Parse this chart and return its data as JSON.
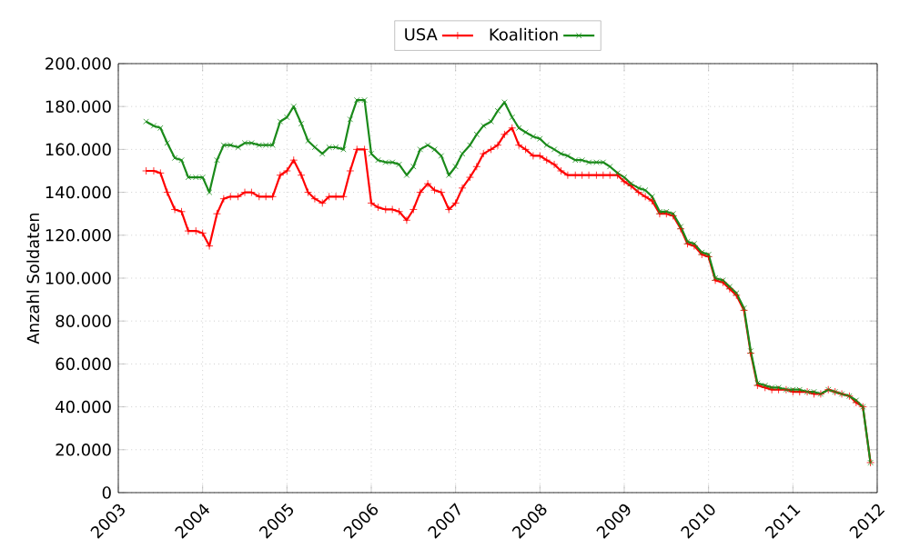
{
  "chart_data": {
    "type": "line",
    "ylabel": "Anzahl Soldaten",
    "xlim": [
      2003,
      2012
    ],
    "xticks": [
      2003,
      2004,
      2005,
      2006,
      2007,
      2008,
      2009,
      2010,
      2011,
      2012
    ],
    "ylim": [
      0,
      200000
    ],
    "yticks": [
      {
        "value": 0,
        "label": "0"
      },
      {
        "value": 20000,
        "label": "20.000"
      },
      {
        "value": 40000,
        "label": "40.000"
      },
      {
        "value": 60000,
        "label": "60.000"
      },
      {
        "value": 80000,
        "label": "80.000"
      },
      {
        "value": 100000,
        "label": "100.000"
      },
      {
        "value": 120000,
        "label": "120.000"
      },
      {
        "value": 140000,
        "label": "140.000"
      },
      {
        "value": 160000,
        "label": "160.000"
      },
      {
        "value": 180000,
        "label": "180.000"
      },
      {
        "value": 200000,
        "label": "200.000"
      }
    ],
    "grid": true,
    "legend": "top",
    "line_style": "solid",
    "series": [
      {
        "name": "USA",
        "color": "#ff0000",
        "marker": "plus",
        "x": [
          2003.33,
          2003.42,
          2003.5,
          2003.58,
          2003.67,
          2003.75,
          2003.83,
          2003.92,
          2004.0,
          2004.08,
          2004.17,
          2004.25,
          2004.33,
          2004.42,
          2004.5,
          2004.58,
          2004.67,
          2004.75,
          2004.83,
          2004.92,
          2005.0,
          2005.08,
          2005.17,
          2005.25,
          2005.33,
          2005.42,
          2005.5,
          2005.58,
          2005.67,
          2005.75,
          2005.83,
          2005.92,
          2006.0,
          2006.08,
          2006.17,
          2006.25,
          2006.33,
          2006.42,
          2006.5,
          2006.58,
          2006.67,
          2006.75,
          2006.83,
          2006.92,
          2007.0,
          2007.08,
          2007.17,
          2007.25,
          2007.33,
          2007.42,
          2007.5,
          2007.58,
          2007.67,
          2007.75,
          2007.83,
          2007.92,
          2008.0,
          2008.08,
          2008.17,
          2008.25,
          2008.33,
          2008.42,
          2008.5,
          2008.58,
          2008.67,
          2008.75,
          2008.83,
          2008.92,
          2009.0,
          2009.08,
          2009.17,
          2009.25,
          2009.33,
          2009.42,
          2009.5,
          2009.58,
          2009.67,
          2009.75,
          2009.83,
          2009.92,
          2010.0,
          2010.08,
          2010.17,
          2010.25,
          2010.33,
          2010.42,
          2010.5,
          2010.58,
          2010.67,
          2010.75,
          2010.83,
          2010.92,
          2011.0,
          2011.08,
          2011.17,
          2011.25,
          2011.33,
          2011.42,
          2011.5,
          2011.58,
          2011.67,
          2011.75,
          2011.83,
          2011.92
        ],
        "values": [
          150000,
          150000,
          149000,
          140000,
          132000,
          131000,
          122000,
          122000,
          121000,
          115000,
          130000,
          137000,
          138000,
          138000,
          140000,
          140000,
          138000,
          138000,
          138000,
          148000,
          150000,
          155000,
          148000,
          140000,
          137000,
          135000,
          138000,
          138000,
          138000,
          150000,
          160000,
          160000,
          135000,
          133000,
          132000,
          132000,
          131000,
          127000,
          132000,
          140000,
          144000,
          141000,
          140000,
          132000,
          135000,
          142000,
          147000,
          152000,
          158000,
          160000,
          162000,
          167000,
          170000,
          162000,
          160000,
          157000,
          157000,
          155000,
          153000,
          150000,
          148000,
          148000,
          148000,
          148000,
          148000,
          148000,
          148000,
          148000,
          145000,
          143000,
          140000,
          138000,
          136000,
          130000,
          130000,
          129000,
          123000,
          116000,
          115000,
          111000,
          110000,
          99000,
          98000,
          95000,
          92000,
          85000,
          65000,
          50000,
          49000,
          48000,
          48000,
          48000,
          47000,
          47000,
          47000,
          46000,
          46000,
          48000,
          47000,
          46000,
          45000,
          42000,
          40000,
          14000
        ]
      },
      {
        "name": "Koalition",
        "color": "#1a8a1a",
        "marker": "cross",
        "x": [
          2003.33,
          2003.42,
          2003.5,
          2003.58,
          2003.67,
          2003.75,
          2003.83,
          2003.92,
          2004.0,
          2004.08,
          2004.17,
          2004.25,
          2004.33,
          2004.42,
          2004.5,
          2004.58,
          2004.67,
          2004.75,
          2004.83,
          2004.92,
          2005.0,
          2005.08,
          2005.17,
          2005.25,
          2005.33,
          2005.42,
          2005.5,
          2005.58,
          2005.67,
          2005.75,
          2005.83,
          2005.92,
          2006.0,
          2006.08,
          2006.17,
          2006.25,
          2006.33,
          2006.42,
          2006.5,
          2006.58,
          2006.67,
          2006.75,
          2006.83,
          2006.92,
          2007.0,
          2007.08,
          2007.17,
          2007.25,
          2007.33,
          2007.42,
          2007.5,
          2007.58,
          2007.67,
          2007.75,
          2007.83,
          2007.92,
          2008.0,
          2008.08,
          2008.17,
          2008.25,
          2008.33,
          2008.42,
          2008.5,
          2008.58,
          2008.67,
          2008.75,
          2008.83,
          2008.92,
          2009.0,
          2009.08,
          2009.17,
          2009.25,
          2009.33,
          2009.42,
          2009.5,
          2009.58,
          2009.67,
          2009.75,
          2009.83,
          2009.92,
          2010.0,
          2010.08,
          2010.17,
          2010.25,
          2010.33,
          2010.42,
          2010.5,
          2010.58,
          2010.67,
          2010.75,
          2010.83,
          2010.92,
          2011.0,
          2011.08,
          2011.17,
          2011.25,
          2011.33,
          2011.42,
          2011.5,
          2011.58,
          2011.67,
          2011.75,
          2011.83,
          2011.92
        ],
        "values": [
          173000,
          171000,
          170000,
          163000,
          156000,
          155000,
          147000,
          147000,
          147000,
          140000,
          155000,
          162000,
          162000,
          161000,
          163000,
          163000,
          162000,
          162000,
          162000,
          173000,
          175000,
          180000,
          172000,
          164000,
          161000,
          158000,
          161000,
          161000,
          160000,
          174000,
          183000,
          183000,
          158000,
          155000,
          154000,
          154000,
          153000,
          148000,
          152000,
          160000,
          162000,
          160000,
          157000,
          148000,
          152000,
          158000,
          162000,
          167000,
          171000,
          173000,
          178000,
          182000,
          175000,
          170000,
          168000,
          166000,
          165000,
          162000,
          160000,
          158000,
          157000,
          155000,
          155000,
          154000,
          154000,
          154000,
          152000,
          149000,
          147000,
          144000,
          142000,
          141000,
          138000,
          131000,
          131000,
          130000,
          124000,
          117000,
          116000,
          112000,
          111000,
          100000,
          99000,
          96000,
          93000,
          86000,
          66000,
          51000,
          50000,
          49000,
          49000,
          48000,
          48000,
          48000,
          47000,
          47000,
          46000,
          48000,
          47000,
          46000,
          45000,
          43000,
          40000,
          14000
        ]
      }
    ]
  }
}
